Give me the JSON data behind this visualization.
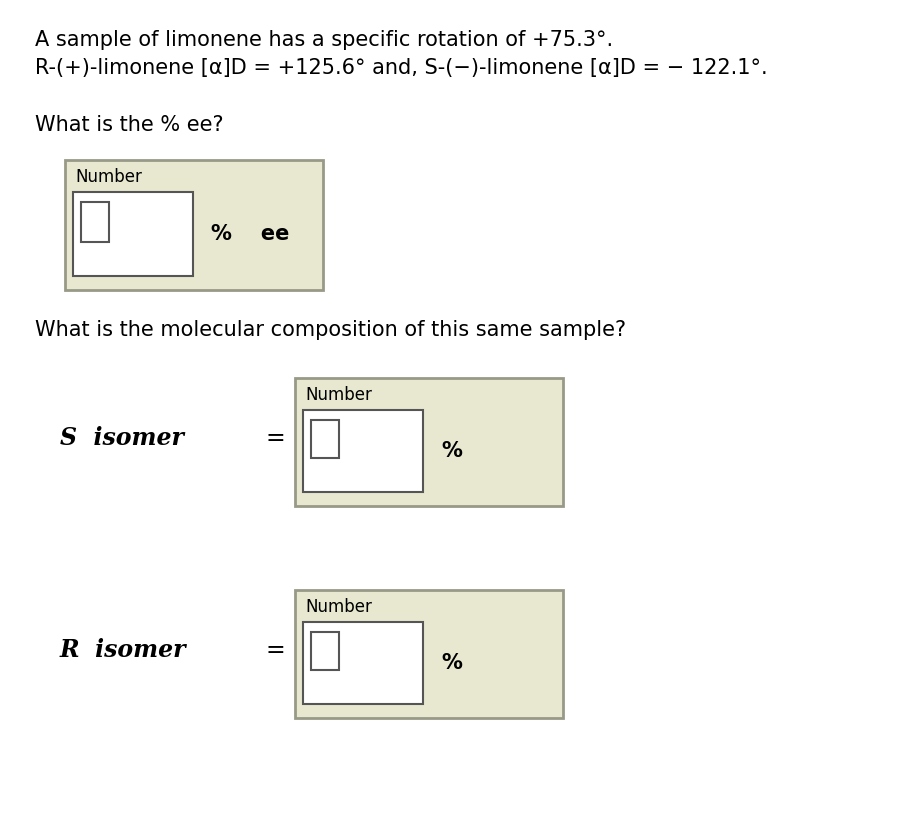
{
  "bg_color": "#ffffff",
  "line1": "A sample of limonene has a specific rotation of +75.3°.",
  "line2": "R-(+)-limonene [α]D = +125.6° and, S-(−)-limonene [α]D = − 122.1°.",
  "question1": "What is the % ee?",
  "question2": "What is the molecular composition of this same sample?",
  "label_number": "Number",
  "label_percent_ee": "%    ee",
  "label_percent": "%",
  "s_isomer_label": "S  isomer",
  "r_isomer_label": "R  isomer",
  "equals": "=",
  "outer_box_color": "#e8e8d0",
  "inner_box_color": "#ffffff",
  "outer_box_edge": "#999988",
  "inner_box_edge": "#555555",
  "text_color": "#000000",
  "font_size_body": 15,
  "font_size_number": 12,
  "font_size_percent_ee": 15,
  "font_size_isomer": 17
}
